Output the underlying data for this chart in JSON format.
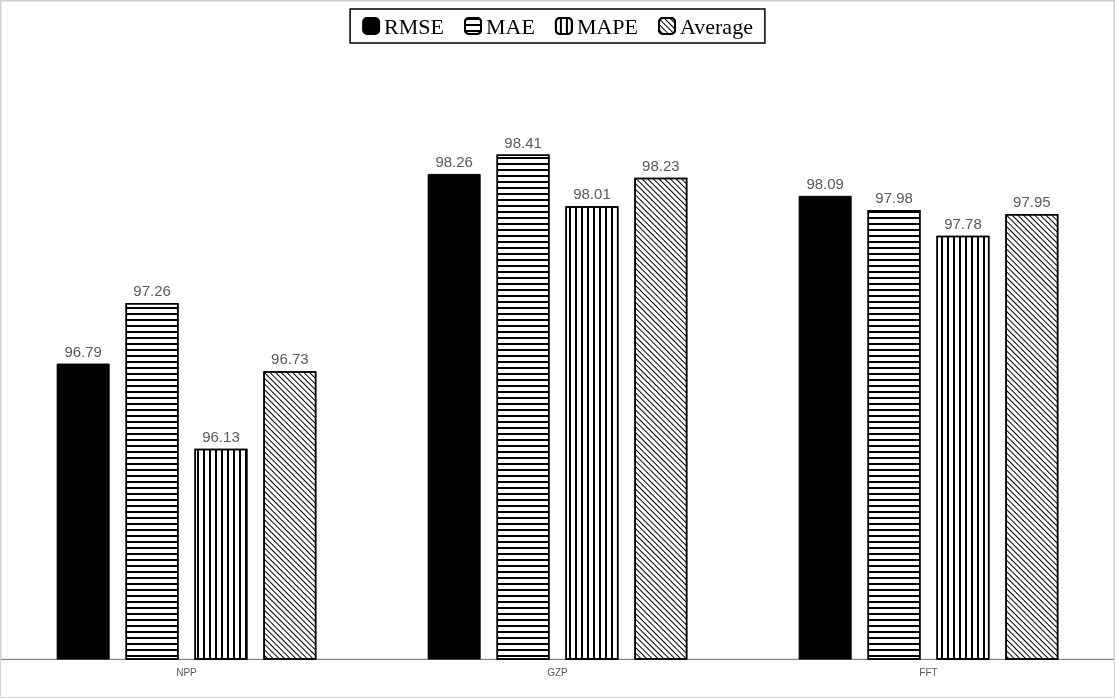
{
  "chart_data": {
    "type": "bar",
    "categories": [
      "NPP",
      "GZP",
      "FFT"
    ],
    "series": [
      {
        "name": "RMSE",
        "color": "#000000",
        "values": [
          96.79,
          98.26,
          98.09
        ]
      },
      {
        "name": "MAE",
        "color": "#000000",
        "values": [
          97.26,
          98.41,
          97.98
        ]
      },
      {
        "name": "MAPE",
        "color": "#000000",
        "values": [
          96.13,
          98.01,
          97.78
        ]
      },
      {
        "name": "Average",
        "color": "#000000",
        "values": [
          96.73,
          98.23,
          97.95
        ]
      }
    ],
    "ylim": [
      94.5,
      99.6
    ],
    "data_labels": true,
    "legend": "top",
    "tick_labels": "x"
  }
}
